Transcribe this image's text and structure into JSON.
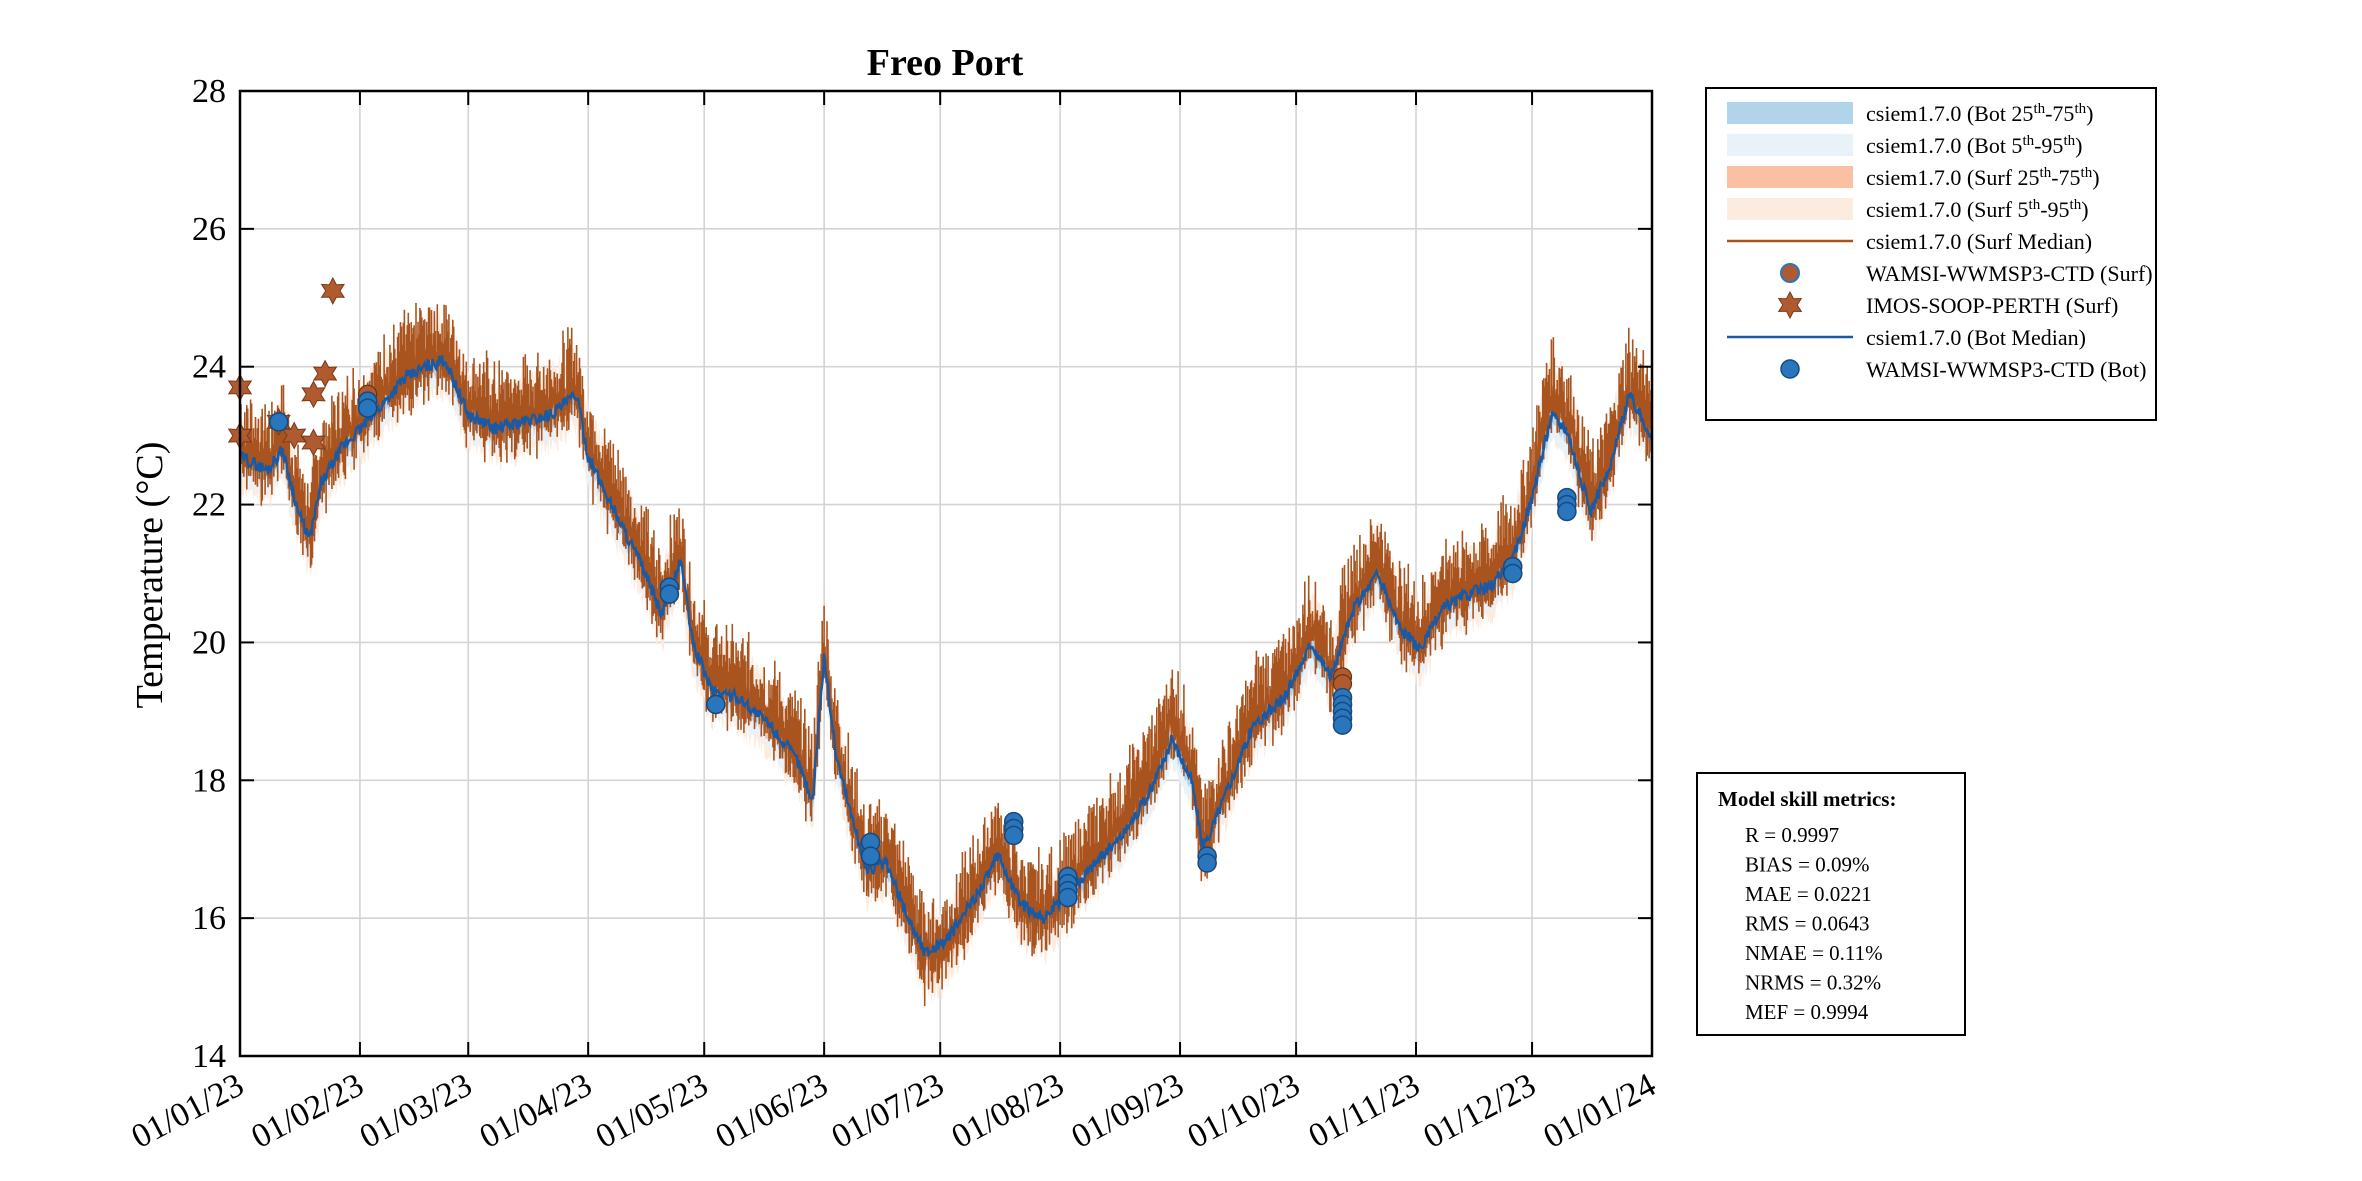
{
  "chart_data": {
    "type": "line",
    "title": "Freo Port",
    "ylabel": "Temperature (°C)",
    "ylim": [
      14,
      28
    ],
    "yticks": [
      14,
      16,
      18,
      20,
      22,
      24,
      26,
      28
    ],
    "xlim": [
      "2023-01-01",
      "2024-01-01"
    ],
    "xtick_labels": [
      "01/01/23",
      "01/02/23",
      "01/03/23",
      "01/04/23",
      "01/05/23",
      "01/06/23",
      "01/07/23",
      "01/08/23",
      "01/09/23",
      "01/10/23",
      "01/11/23",
      "01/12/23",
      "01/01/24"
    ],
    "xtick_dates": [
      "2023-01-01",
      "2023-02-01",
      "2023-03-01",
      "2023-04-01",
      "2023-05-01",
      "2023-06-01",
      "2023-07-01",
      "2023-08-01",
      "2023-09-01",
      "2023-10-01",
      "2023-11-01",
      "2023-12-01",
      "2024-01-01"
    ],
    "grid": true,
    "legend_position": "outside-top-right",
    "colors": {
      "bot_iqr": "#b2d4ea",
      "bot_p95": "#e9f1f9",
      "surf_iqr": "#fbbfa4",
      "surf_p95": "#fcebdf",
      "surf_median": "#a9541f",
      "bot_median": "#1a5aa5",
      "ctd_marker": "#2a76bd",
      "star_marker": "#b05a30"
    },
    "legend": [
      {
        "label": "csiem1.7.0 (Bot 25th-75th)",
        "text": "csiem1.7.0 (Bot 25",
        "sup1": "th",
        "mid": "-75",
        "sup2": "th",
        "end": ")",
        "type": "band",
        "color": "#b2d4ea"
      },
      {
        "label": "csiem1.7.0 (Bot 5th-95th)",
        "text": "csiem1.7.0 (Bot 5",
        "sup1": "th",
        "mid": "-95",
        "sup2": "th",
        "end": ")",
        "type": "band",
        "color": "#e9f1f9"
      },
      {
        "label": "csiem1.7.0 (Surf 25th-75th)",
        "text": "csiem1.7.0 (Surf 25",
        "sup1": "th",
        "mid": "-75",
        "sup2": "th",
        "end": ")",
        "type": "band",
        "color": "#fbbfa4"
      },
      {
        "label": "csiem1.7.0 (Surf 5th-95th)",
        "text": "csiem1.7.0 (Surf 5",
        "sup1": "th",
        "mid": "-95",
        "sup2": "th",
        "end": ")",
        "type": "band",
        "color": "#fcebdf"
      },
      {
        "label": "csiem1.7.0 (Surf Median)",
        "type": "line",
        "color": "#a9541f"
      },
      {
        "label": "WAMSI-WWMSP3-CTD (Surf)",
        "type": "circle-surf",
        "color": "#2a76bd"
      },
      {
        "label": "IMOS-SOOP-PERTH (Surf)",
        "type": "star",
        "color": "#b05a30"
      },
      {
        "label": "csiem1.7.0 (Bot Median)",
        "type": "line",
        "color": "#1a5aa5"
      },
      {
        "label": "WAMSI-WWMSP3-CTD (Bot)",
        "type": "circle",
        "color": "#2a76bd"
      }
    ],
    "surf_median_keypoints": [
      [
        "2023-01-01",
        22.8
      ],
      [
        "2023-01-08",
        22.6
      ],
      [
        "2023-01-12",
        22.9
      ],
      [
        "2023-01-16",
        22.0
      ],
      [
        "2023-01-19",
        21.6
      ],
      [
        "2023-01-22",
        22.4
      ],
      [
        "2023-01-27",
        22.9
      ],
      [
        "2023-02-01",
        23.2
      ],
      [
        "2023-02-06",
        23.5
      ],
      [
        "2023-02-12",
        23.9
      ],
      [
        "2023-02-18",
        24.1
      ],
      [
        "2023-02-23",
        24.2
      ],
      [
        "2023-03-01",
        23.4
      ],
      [
        "2023-03-08",
        23.2
      ],
      [
        "2023-03-15",
        23.3
      ],
      [
        "2023-03-22",
        23.4
      ],
      [
        "2023-03-29",
        23.7
      ],
      [
        "2023-04-01",
        22.8
      ],
      [
        "2023-04-07",
        22.1
      ],
      [
        "2023-04-15",
        21.2
      ],
      [
        "2023-04-20",
        20.5
      ],
      [
        "2023-04-25",
        21.3
      ],
      [
        "2023-04-28",
        20.1
      ],
      [
        "2023-05-03",
        19.4
      ],
      [
        "2023-05-10",
        19.3
      ],
      [
        "2023-05-18",
        18.9
      ],
      [
        "2023-05-25",
        18.4
      ],
      [
        "2023-05-29",
        17.8
      ],
      [
        "2023-06-01",
        19.9
      ],
      [
        "2023-06-04",
        18.5
      ],
      [
        "2023-06-08",
        17.6
      ],
      [
        "2023-06-12",
        16.8
      ],
      [
        "2023-06-17",
        16.9
      ],
      [
        "2023-06-22",
        16.2
      ],
      [
        "2023-06-27",
        15.4
      ],
      [
        "2023-07-03",
        15.6
      ],
      [
        "2023-07-10",
        16.3
      ],
      [
        "2023-07-16",
        17.0
      ],
      [
        "2023-07-22",
        16.2
      ],
      [
        "2023-07-28",
        16.0
      ],
      [
        "2023-08-04",
        16.5
      ],
      [
        "2023-08-10",
        16.9
      ],
      [
        "2023-08-17",
        17.4
      ],
      [
        "2023-08-24",
        18.0
      ],
      [
        "2023-08-30",
        18.9
      ],
      [
        "2023-09-04",
        18.2
      ],
      [
        "2023-09-07",
        17.0
      ],
      [
        "2023-09-12",
        17.8
      ],
      [
        "2023-09-20",
        18.9
      ],
      [
        "2023-09-28",
        19.3
      ],
      [
        "2023-10-05",
        20.2
      ],
      [
        "2023-10-10",
        19.6
      ],
      [
        "2023-10-16",
        20.6
      ],
      [
        "2023-10-22",
        21.1
      ],
      [
        "2023-10-28",
        20.3
      ],
      [
        "2023-11-02",
        20.0
      ],
      [
        "2023-11-08",
        20.6
      ],
      [
        "2023-11-14",
        20.8
      ],
      [
        "2023-11-20",
        20.9
      ],
      [
        "2023-11-26",
        21.3
      ],
      [
        "2023-12-01",
        22.3
      ],
      [
        "2023-12-06",
        23.6
      ],
      [
        "2023-12-10",
        23.3
      ],
      [
        "2023-12-16",
        22.0
      ],
      [
        "2023-12-21",
        22.6
      ],
      [
        "2023-12-26",
        23.7
      ],
      [
        "2024-01-01",
        23.1
      ]
    ],
    "bot_median_keypoints": [
      [
        "2023-01-01",
        22.7
      ],
      [
        "2023-01-08",
        22.5
      ],
      [
        "2023-01-12",
        22.8
      ],
      [
        "2023-01-16",
        21.9
      ],
      [
        "2023-01-19",
        21.5
      ],
      [
        "2023-01-22",
        22.3
      ],
      [
        "2023-01-27",
        22.8
      ],
      [
        "2023-02-01",
        23.1
      ],
      [
        "2023-02-06",
        23.4
      ],
      [
        "2023-02-12",
        23.8
      ],
      [
        "2023-02-18",
        24.0
      ],
      [
        "2023-02-23",
        24.1
      ],
      [
        "2023-03-01",
        23.3
      ],
      [
        "2023-03-08",
        23.1
      ],
      [
        "2023-03-15",
        23.2
      ],
      [
        "2023-03-22",
        23.3
      ],
      [
        "2023-03-29",
        23.6
      ],
      [
        "2023-04-01",
        22.7
      ],
      [
        "2023-04-07",
        22.0
      ],
      [
        "2023-04-15",
        21.1
      ],
      [
        "2023-04-20",
        20.4
      ],
      [
        "2023-04-25",
        21.2
      ],
      [
        "2023-04-28",
        20.0
      ],
      [
        "2023-05-03",
        19.3
      ],
      [
        "2023-05-10",
        19.2
      ],
      [
        "2023-05-18",
        18.8
      ],
      [
        "2023-05-25",
        18.3
      ],
      [
        "2023-05-29",
        17.7
      ],
      [
        "2023-06-01",
        19.8
      ],
      [
        "2023-06-04",
        18.4
      ],
      [
        "2023-06-08",
        17.5
      ],
      [
        "2023-06-12",
        16.7
      ],
      [
        "2023-06-17",
        16.8
      ],
      [
        "2023-06-22",
        16.1
      ],
      [
        "2023-06-27",
        15.5
      ],
      [
        "2023-07-03",
        15.7
      ],
      [
        "2023-07-10",
        16.3
      ],
      [
        "2023-07-16",
        16.9
      ],
      [
        "2023-07-22",
        16.2
      ],
      [
        "2023-07-28",
        16.0
      ],
      [
        "2023-08-04",
        16.4
      ],
      [
        "2023-08-10",
        16.8
      ],
      [
        "2023-08-17",
        17.2
      ],
      [
        "2023-08-24",
        17.8
      ],
      [
        "2023-08-30",
        18.6
      ],
      [
        "2023-09-04",
        18.0
      ],
      [
        "2023-09-07",
        17.0
      ],
      [
        "2023-09-12",
        17.7
      ],
      [
        "2023-09-20",
        18.8
      ],
      [
        "2023-09-28",
        19.2
      ],
      [
        "2023-10-05",
        20.0
      ],
      [
        "2023-10-10",
        19.5
      ],
      [
        "2023-10-16",
        20.5
      ],
      [
        "2023-10-22",
        21.0
      ],
      [
        "2023-10-28",
        20.2
      ],
      [
        "2023-11-02",
        19.9
      ],
      [
        "2023-11-08",
        20.5
      ],
      [
        "2023-11-14",
        20.7
      ],
      [
        "2023-11-20",
        20.8
      ],
      [
        "2023-11-26",
        21.2
      ],
      [
        "2023-12-01",
        22.1
      ],
      [
        "2023-12-06",
        23.3
      ],
      [
        "2023-12-10",
        23.1
      ],
      [
        "2023-12-16",
        21.9
      ],
      [
        "2023-12-21",
        22.5
      ],
      [
        "2023-12-26",
        23.6
      ],
      [
        "2024-01-01",
        23.0
      ]
    ],
    "imos_soop_surf": [
      [
        "2023-01-01",
        23.0
      ],
      [
        "2023-01-01",
        23.7
      ],
      [
        "2023-01-11",
        23.2
      ],
      [
        "2023-01-15",
        23.0
      ],
      [
        "2023-01-20",
        22.9
      ],
      [
        "2023-01-20",
        23.6
      ],
      [
        "2023-01-23",
        23.9
      ],
      [
        "2023-01-25",
        25.1
      ]
    ],
    "wamsi_ctd_surf": [
      [
        "2023-01-11",
        23.2
      ],
      [
        "2023-02-03",
        23.6
      ],
      [
        "2023-02-03",
        23.5
      ],
      [
        "2023-02-03",
        23.4
      ],
      [
        "2023-04-22",
        20.8
      ],
      [
        "2023-04-22",
        20.7
      ],
      [
        "2023-05-04",
        19.1
      ],
      [
        "2023-06-13",
        17.1
      ],
      [
        "2023-06-13",
        16.9
      ],
      [
        "2023-07-20",
        17.4
      ],
      [
        "2023-07-20",
        17.3
      ],
      [
        "2023-07-20",
        17.2
      ],
      [
        "2023-08-03",
        16.6
      ],
      [
        "2023-08-03",
        16.5
      ],
      [
        "2023-08-03",
        16.4
      ],
      [
        "2023-08-03",
        16.3
      ],
      [
        "2023-09-08",
        16.9
      ],
      [
        "2023-09-08",
        16.8
      ],
      [
        "2023-10-13",
        19.5
      ],
      [
        "2023-10-13",
        19.4
      ],
      [
        "2023-10-13",
        19.2
      ],
      [
        "2023-10-13",
        19.1
      ],
      [
        "2023-10-13",
        19.0
      ],
      [
        "2023-10-13",
        18.9
      ],
      [
        "2023-10-13",
        18.8
      ],
      [
        "2023-11-26",
        21.1
      ],
      [
        "2023-11-26",
        21.0
      ],
      [
        "2023-12-10",
        22.1
      ],
      [
        "2023-12-10",
        22.0
      ],
      [
        "2023-12-10",
        21.9
      ]
    ],
    "wamsi_ctd_bot": [
      [
        "2023-01-11",
        23.2
      ],
      [
        "2023-02-03",
        23.5
      ],
      [
        "2023-02-03",
        23.4
      ],
      [
        "2023-04-22",
        20.8
      ],
      [
        "2023-04-22",
        20.7
      ],
      [
        "2023-05-04",
        19.1
      ],
      [
        "2023-06-13",
        17.1
      ],
      [
        "2023-06-13",
        16.9
      ],
      [
        "2023-07-20",
        17.4
      ],
      [
        "2023-07-20",
        17.3
      ],
      [
        "2023-07-20",
        17.2
      ],
      [
        "2023-08-03",
        16.6
      ],
      [
        "2023-08-03",
        16.5
      ],
      [
        "2023-08-03",
        16.4
      ],
      [
        "2023-08-03",
        16.3
      ],
      [
        "2023-09-08",
        16.9
      ],
      [
        "2023-09-08",
        16.8
      ],
      [
        "2023-10-13",
        19.2
      ],
      [
        "2023-10-13",
        19.1
      ],
      [
        "2023-10-13",
        19.0
      ],
      [
        "2023-10-13",
        18.9
      ],
      [
        "2023-10-13",
        18.8
      ],
      [
        "2023-11-26",
        21.1
      ],
      [
        "2023-11-26",
        21.0
      ],
      [
        "2023-12-10",
        22.1
      ],
      [
        "2023-12-10",
        22.0
      ],
      [
        "2023-12-10",
        21.9
      ]
    ],
    "skill_metrics": {
      "heading": "Model skill metrics:",
      "lines": [
        "R    = 0.9997",
        "BIAS = 0.09%",
        "MAE  = 0.0221",
        "RMS  = 0.0643",
        "NMAE = 0.11%",
        "NRMS = 0.32%",
        "MEF  = 0.9994"
      ]
    }
  }
}
